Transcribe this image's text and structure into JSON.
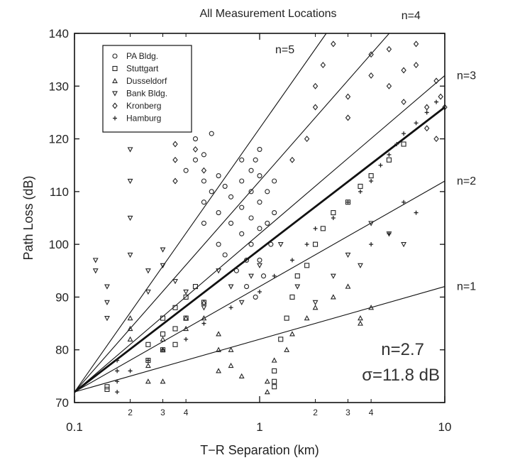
{
  "chart_data": {
    "type": "scatter",
    "title": "All Measurement Locations",
    "xlabel": "T−R Separation (km)",
    "ylabel": "Path Loss (dB)",
    "xscale": "log",
    "xlim": [
      0.1,
      10
    ],
    "ylim": [
      70,
      140
    ],
    "grid": false,
    "legend_position": "top-left",
    "x_major_ticks": [
      {
        "value": 0.1,
        "label": "0.1"
      },
      {
        "value": 1,
        "label": "1"
      },
      {
        "value": 10,
        "label": "10"
      }
    ],
    "x_minor_ticks": [
      {
        "value": 0.2,
        "label": "2"
      },
      {
        "value": 0.3,
        "label": "3"
      },
      {
        "value": 0.4,
        "label": "4"
      },
      {
        "value": 2,
        "label": "2"
      },
      {
        "value": 3,
        "label": "3"
      },
      {
        "value": 4,
        "label": "4"
      }
    ],
    "y_ticks": [
      {
        "value": 70,
        "label": "70"
      },
      {
        "value": 80,
        "label": "80"
      },
      {
        "value": 90,
        "label": "90"
      },
      {
        "value": 100,
        "label": "100"
      },
      {
        "value": 110,
        "label": "110"
      },
      {
        "value": 120,
        "label": "120"
      },
      {
        "value": 130,
        "label": "130"
      },
      {
        "value": 140,
        "label": "140"
      }
    ],
    "reference_lines": {
      "pl_at_0_1km": 72,
      "lines": [
        {
          "n": 1,
          "label": "n=1",
          "y_at_10km": 92
        },
        {
          "n": 2,
          "label": "n=2",
          "y_at_10km": 112
        },
        {
          "n": 3,
          "label": "n=3",
          "y_at_10km": 132
        },
        {
          "n": 4,
          "label": "n=4",
          "y_at_10km": 152
        },
        {
          "n": 5,
          "label": "n=5",
          "y_at_10km": 172
        }
      ],
      "fit": {
        "n": 2.7,
        "y_at_10km": 126
      }
    },
    "annotations": [
      "n=2.7",
      "σ=11.8 dB"
    ],
    "series": [
      {
        "name": "PA Bldg.",
        "marker": "circle",
        "points": [
          [
            0.5,
            117
          ],
          [
            0.5,
            112
          ],
          [
            0.5,
            108
          ],
          [
            0.5,
            104
          ],
          [
            0.55,
            110
          ],
          [
            0.6,
            113
          ],
          [
            0.6,
            106
          ],
          [
            0.6,
            100
          ],
          [
            0.65,
            111
          ],
          [
            0.7,
            109
          ],
          [
            0.7,
            104
          ],
          [
            0.8,
            116
          ],
          [
            0.8,
            112
          ],
          [
            0.8,
            107
          ],
          [
            0.8,
            102
          ],
          [
            0.85,
            97
          ],
          [
            0.9,
            114
          ],
          [
            0.9,
            110
          ],
          [
            0.9,
            105
          ],
          [
            0.9,
            100
          ],
          [
            0.95,
            116
          ],
          [
            1,
            118
          ],
          [
            1,
            113
          ],
          [
            1,
            108
          ],
          [
            1,
            103
          ],
          [
            1,
            97
          ],
          [
            1.1,
            110
          ],
          [
            1.1,
            104
          ],
          [
            1.2,
            112
          ],
          [
            1.2,
            106
          ],
          [
            0.45,
            120
          ],
          [
            0.45,
            116
          ],
          [
            0.4,
            114
          ],
          [
            0.55,
            121
          ],
          [
            0.65,
            98
          ],
          [
            0.75,
            95
          ],
          [
            0.85,
            92
          ],
          [
            0.95,
            90
          ],
          [
            1.05,
            94
          ],
          [
            1.15,
            100
          ]
        ]
      },
      {
        "name": "Stuttgart",
        "marker": "square",
        "points": [
          [
            0.15,
            73
          ],
          [
            0.15,
            72.5
          ],
          [
            0.25,
            81
          ],
          [
            0.25,
            78
          ],
          [
            0.3,
            86
          ],
          [
            0.3,
            83
          ],
          [
            0.3,
            80
          ],
          [
            0.35,
            88
          ],
          [
            0.35,
            84
          ],
          [
            0.35,
            81
          ],
          [
            0.4,
            90
          ],
          [
            0.4,
            86
          ],
          [
            0.45,
            92
          ],
          [
            0.5,
            89
          ],
          [
            1.2,
            76
          ],
          [
            1.2,
            74
          ],
          [
            1.2,
            73
          ],
          [
            1.3,
            82
          ],
          [
            1.4,
            86
          ],
          [
            1.5,
            90
          ],
          [
            1.6,
            94
          ],
          [
            1.8,
            96
          ],
          [
            2,
            100
          ],
          [
            2.2,
            103
          ],
          [
            2.5,
            106
          ],
          [
            3,
            108
          ],
          [
            3.5,
            111
          ],
          [
            4,
            113
          ],
          [
            5,
            116
          ],
          [
            6,
            119
          ]
        ]
      },
      {
        "name": "Dusseldorf",
        "marker": "triangle-up",
        "points": [
          [
            0.2,
            86
          ],
          [
            0.2,
            84
          ],
          [
            0.2,
            82
          ],
          [
            0.25,
            74
          ],
          [
            0.25,
            77
          ],
          [
            0.3,
            80
          ],
          [
            0.3,
            82
          ],
          [
            0.4,
            84
          ],
          [
            0.4,
            86
          ],
          [
            0.5,
            86
          ],
          [
            0.5,
            89
          ],
          [
            0.6,
            80
          ],
          [
            0.6,
            83
          ],
          [
            0.7,
            77
          ],
          [
            0.7,
            80
          ],
          [
            1.1,
            72
          ],
          [
            1.1,
            74
          ],
          [
            1.2,
            78
          ],
          [
            1.5,
            83
          ],
          [
            1.8,
            86
          ],
          [
            2,
            88
          ],
          [
            2.5,
            90
          ],
          [
            3,
            92
          ],
          [
            3.5,
            86
          ],
          [
            3.5,
            85
          ],
          [
            4,
            88
          ],
          [
            0.3,
            74
          ],
          [
            0.6,
            76
          ],
          [
            0.8,
            75
          ],
          [
            1.4,
            80
          ]
        ]
      },
      {
        "name": "Bank Bldg.",
        "marker": "triangle-down",
        "points": [
          [
            0.13,
            97
          ],
          [
            0.13,
            95
          ],
          [
            0.15,
            92
          ],
          [
            0.15,
            89
          ],
          [
            0.15,
            86
          ],
          [
            0.2,
            118
          ],
          [
            0.2,
            112
          ],
          [
            0.2,
            105
          ],
          [
            0.2,
            98
          ],
          [
            0.25,
            95
          ],
          [
            0.25,
            91
          ],
          [
            0.3,
            99
          ],
          [
            0.3,
            96
          ],
          [
            0.35,
            93
          ],
          [
            0.4,
            91
          ],
          [
            0.5,
            88
          ],
          [
            0.6,
            95
          ],
          [
            0.7,
            92
          ],
          [
            0.8,
            89
          ],
          [
            0.9,
            94
          ],
          [
            1,
            96
          ],
          [
            1.3,
            100
          ],
          [
            1.6,
            92
          ],
          [
            2,
            89
          ],
          [
            2.5,
            94
          ],
          [
            3,
            98
          ],
          [
            3.5,
            96
          ],
          [
            4,
            104
          ],
          [
            5,
            102
          ],
          [
            6,
            100
          ]
        ]
      },
      {
        "name": "Kronberg",
        "marker": "diamond",
        "points": [
          [
            0.35,
            119
          ],
          [
            0.35,
            116
          ],
          [
            0.35,
            112
          ],
          [
            0.4,
            130
          ],
          [
            0.4,
            126
          ],
          [
            0.4,
            122
          ],
          [
            0.45,
            118
          ],
          [
            0.5,
            114
          ],
          [
            1.5,
            116
          ],
          [
            1.8,
            120
          ],
          [
            2,
            130
          ],
          [
            2,
            126
          ],
          [
            2.2,
            134
          ],
          [
            2.5,
            138
          ],
          [
            3,
            128
          ],
          [
            3,
            124
          ],
          [
            4,
            132
          ],
          [
            4,
            136
          ],
          [
            5,
            137
          ],
          [
            5,
            130
          ],
          [
            6,
            133
          ],
          [
            6,
            127
          ],
          [
            7,
            138
          ],
          [
            7,
            134
          ],
          [
            8,
            126
          ],
          [
            8,
            122
          ],
          [
            9,
            131
          ],
          [
            9,
            120
          ],
          [
            9.5,
            128
          ],
          [
            10,
            126
          ]
        ]
      },
      {
        "name": "Hamburg",
        "marker": "plus",
        "points": [
          [
            0.17,
            78
          ],
          [
            0.17,
            76
          ],
          [
            0.17,
            74
          ],
          [
            0.17,
            72
          ],
          [
            0.2,
            76
          ],
          [
            0.25,
            78
          ],
          [
            0.3,
            80
          ],
          [
            0.4,
            82
          ],
          [
            0.5,
            85
          ],
          [
            0.7,
            88
          ],
          [
            1,
            91
          ],
          [
            1.2,
            94
          ],
          [
            1.5,
            97
          ],
          [
            1.8,
            100
          ],
          [
            2,
            103
          ],
          [
            2.5,
            105
          ],
          [
            3,
            108
          ],
          [
            3.5,
            110
          ],
          [
            4,
            112
          ],
          [
            4.5,
            115
          ],
          [
            5,
            117
          ],
          [
            5.5,
            119
          ],
          [
            6,
            121
          ],
          [
            7,
            123
          ],
          [
            8,
            125
          ],
          [
            9,
            127
          ],
          [
            6,
            108
          ],
          [
            7,
            106
          ],
          [
            5,
            102
          ],
          [
            4,
            100
          ]
        ]
      }
    ]
  }
}
